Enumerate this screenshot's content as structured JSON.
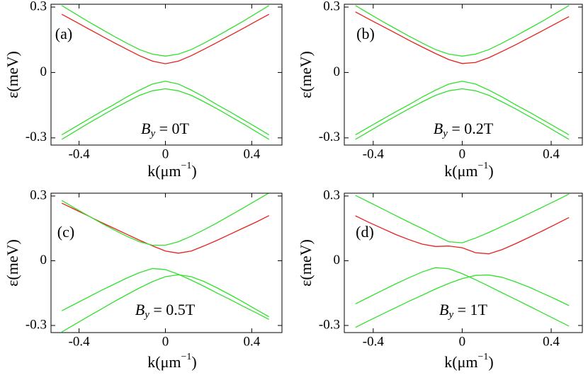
{
  "chart_data": [
    {
      "type": "line",
      "panel_label": "(a)",
      "ylabel": "ε(meV)",
      "xlabel": {
        "base": "k(μm",
        "sup": "−1",
        "close": ")"
      },
      "annotation": {
        "base": "B",
        "sub": "y",
        "rest": " = 0T"
      },
      "x": [
        -0.48,
        -0.42,
        -0.36,
        -0.3,
        -0.24,
        -0.18,
        -0.12,
        -0.06,
        0,
        0.06,
        0.12,
        0.18,
        0.24,
        0.3,
        0.36,
        0.42,
        0.48
      ],
      "series": [
        {
          "color": "#e8201a",
          "values": [
            0.267,
            0.235,
            0.202,
            0.17,
            0.138,
            0.107,
            0.077,
            0.052,
            0.04,
            0.052,
            0.077,
            0.107,
            0.138,
            0.17,
            0.202,
            0.235,
            0.267
          ]
        },
        {
          "color": "#33e02e",
          "values": [
            0.307,
            0.271,
            0.235,
            0.201,
            0.167,
            0.135,
            0.105,
            0.084,
            0.075,
            0.084,
            0.105,
            0.135,
            0.167,
            0.201,
            0.235,
            0.271,
            0.307
          ]
        },
        {
          "color": "#33e02e",
          "values": [
            -0.286,
            -0.251,
            -0.216,
            -0.181,
            -0.148,
            -0.113,
            -0.081,
            -0.053,
            -0.04,
            -0.053,
            -0.081,
            -0.113,
            -0.148,
            -0.181,
            -0.216,
            -0.251,
            -0.286
          ]
        },
        {
          "color": "#33e02e",
          "values": [
            -0.307,
            -0.271,
            -0.235,
            -0.201,
            -0.167,
            -0.135,
            -0.105,
            -0.084,
            -0.075,
            -0.084,
            -0.105,
            -0.135,
            -0.167,
            -0.201,
            -0.235,
            -0.271,
            -0.307
          ]
        }
      ],
      "xlim": [
        -0.53,
        0.54
      ],
      "xticks": [
        -0.4,
        0,
        0.4
      ],
      "ylim": [
        -0.333,
        0.313
      ],
      "yticks": [
        -0.3,
        0,
        0.3
      ]
    },
    {
      "type": "line",
      "panel_label": "(b)",
      "ylabel": "ε(meV)",
      "xlabel": {
        "base": "k(μm",
        "sup": "−1",
        "close": ")"
      },
      "annotation": {
        "base": "B",
        "sub": "y",
        "rest": " = 0.2T"
      },
      "x": [
        -0.48,
        -0.42,
        -0.36,
        -0.3,
        -0.24,
        -0.18,
        -0.12,
        -0.06,
        0,
        0.06,
        0.12,
        0.18,
        0.24,
        0.3,
        0.36,
        0.42,
        0.48
      ],
      "series": [
        {
          "color": "#e8201a",
          "values": [
            0.278,
            0.245,
            0.213,
            0.181,
            0.148,
            0.117,
            0.087,
            0.059,
            0.041,
            0.046,
            0.068,
            0.097,
            0.127,
            0.159,
            0.191,
            0.224,
            0.256
          ]
        },
        {
          "color": "#33e02e",
          "values": [
            0.307,
            0.271,
            0.235,
            0.201,
            0.167,
            0.135,
            0.105,
            0.084,
            0.075,
            0.084,
            0.105,
            0.135,
            0.167,
            0.201,
            0.235,
            0.271,
            0.307
          ]
        },
        {
          "color": "#33e02e",
          "values": [
            -0.286,
            -0.251,
            -0.216,
            -0.181,
            -0.148,
            -0.113,
            -0.081,
            -0.053,
            -0.04,
            -0.053,
            -0.081,
            -0.113,
            -0.148,
            -0.181,
            -0.216,
            -0.251,
            -0.286
          ]
        },
        {
          "color": "#33e02e",
          "values": [
            -0.307,
            -0.271,
            -0.235,
            -0.201,
            -0.167,
            -0.135,
            -0.105,
            -0.084,
            -0.075,
            -0.084,
            -0.105,
            -0.135,
            -0.167,
            -0.201,
            -0.235,
            -0.271,
            -0.307
          ]
        }
      ],
      "xlim": [
        -0.53,
        0.54
      ],
      "xticks": [
        -0.4,
        0,
        0.4
      ],
      "ylim": [
        -0.333,
        0.313
      ],
      "yticks": [
        -0.3,
        0,
        0.3
      ]
    },
    {
      "type": "line",
      "panel_label": "(c)",
      "ylabel": "ε(meV)",
      "xlabel": {
        "base": "k(μm",
        "sup": "−1",
        "close": ")"
      },
      "annotation": {
        "base": "B",
        "sub": "y",
        "rest": " = 0.5T"
      },
      "x": [
        -0.48,
        -0.42,
        -0.36,
        -0.3,
        -0.24,
        -0.18,
        -0.12,
        -0.06,
        0,
        0.06,
        0.12,
        0.18,
        0.24,
        0.3,
        0.36,
        0.42,
        0.48
      ],
      "series": [
        {
          "color": "#e8201a",
          "values": [
            0.267,
            0.238,
            0.209,
            0.179,
            0.151,
            0.123,
            0.095,
            0.069,
            0.045,
            0.035,
            0.045,
            0.069,
            0.095,
            0.123,
            0.151,
            0.179,
            0.209
          ]
        },
        {
          "color": "#33e02e",
          "values": [
            0.279,
            0.244,
            0.21,
            0.176,
            0.144,
            0.114,
            0.088,
            0.072,
            0.072,
            0.088,
            0.114,
            0.144,
            0.176,
            0.21,
            0.244,
            0.279,
            0.314
          ]
        },
        {
          "color": "#33e02e",
          "values": [
            -0.232,
            -0.201,
            -0.17,
            -0.139,
            -0.11,
            -0.081,
            -0.055,
            -0.036,
            -0.041,
            -0.063,
            -0.09,
            -0.119,
            -0.15,
            -0.18,
            -0.211,
            -0.241,
            -0.272
          ]
        },
        {
          "color": "#33e02e",
          "values": [
            -0.33,
            -0.295,
            -0.26,
            -0.226,
            -0.191,
            -0.158,
            -0.126,
            -0.097,
            -0.074,
            -0.065,
            -0.074,
            -0.097,
            -0.126,
            -0.158,
            -0.191,
            -0.226,
            -0.26
          ]
        }
      ],
      "xlim": [
        -0.53,
        0.54
      ],
      "xticks": [
        -0.4,
        0,
        0.4
      ],
      "ylim": [
        -0.333,
        0.313
      ],
      "yticks": [
        -0.3,
        0,
        0.3
      ]
    },
    {
      "type": "line",
      "panel_label": "(d)",
      "ylabel": "ε(meV)",
      "xlabel": {
        "base": "k(μm",
        "sup": "−1",
        "close": ")"
      },
      "annotation": {
        "base": "B",
        "sub": "y",
        "rest": " = 1T"
      },
      "x": [
        -0.48,
        -0.42,
        -0.36,
        -0.3,
        -0.24,
        -0.18,
        -0.12,
        -0.06,
        0,
        0.06,
        0.12,
        0.18,
        0.24,
        0.3,
        0.36,
        0.42,
        0.48
      ],
      "series": [
        {
          "color": "#e8201a",
          "values": [
            0.208,
            0.178,
            0.15,
            0.122,
            0.098,
            0.077,
            0.066,
            0.068,
            0.06,
            0.037,
            0.032,
            0.052,
            0.079,
            0.108,
            0.138,
            0.169,
            0.2
          ]
        },
        {
          "color": "#33e02e",
          "values": [
            0.303,
            0.272,
            0.241,
            0.21,
            0.179,
            0.149,
            0.118,
            0.088,
            0.083,
            0.105,
            0.131,
            0.16,
            0.188,
            0.218,
            0.248,
            0.278,
            0.309
          ]
        },
        {
          "color": "#33e02e",
          "values": [
            -0.2,
            -0.169,
            -0.138,
            -0.108,
            -0.079,
            -0.052,
            -0.032,
            -0.037,
            -0.06,
            -0.088,
            -0.118,
            -0.149,
            -0.179,
            -0.21,
            -0.241,
            -0.272,
            -0.303
          ]
        },
        {
          "color": "#33e02e",
          "values": [
            -0.309,
            -0.278,
            -0.248,
            -0.218,
            -0.188,
            -0.16,
            -0.131,
            -0.105,
            -0.083,
            -0.068,
            -0.066,
            -0.077,
            -0.098,
            -0.122,
            -0.15,
            -0.178,
            -0.208
          ]
        }
      ],
      "xlim": [
        -0.53,
        0.54
      ],
      "xticks": [
        -0.4,
        0,
        0.4
      ],
      "ylim": [
        -0.333,
        0.313
      ],
      "yticks": [
        -0.3,
        0,
        0.3
      ]
    }
  ]
}
